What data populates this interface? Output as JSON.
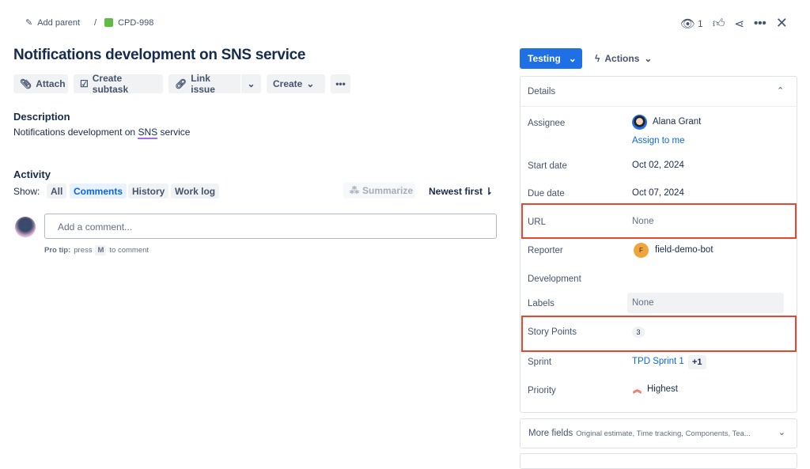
{
  "breadcrumb": {
    "add_parent": "Add parent",
    "separator": "/",
    "issue_key": "CPD-998"
  },
  "header": {
    "watch_count": "1"
  },
  "title": "Notifications development on SNS service",
  "toolbar": {
    "attach": "Attach",
    "create_subtask": "Create subtask",
    "link_issue": "Link issue",
    "create": "Create"
  },
  "description": {
    "heading": "Description",
    "text_before": "Notifications development on ",
    "text_link": "SNS",
    "text_after": " service"
  },
  "activity": {
    "heading": "Activity",
    "show_label": "Show:",
    "filters": [
      "All",
      "Comments",
      "History",
      "Work log"
    ],
    "active_filter": "Comments",
    "summarize": "Summarize",
    "sort": "Newest first",
    "comment_placeholder": "Add a comment...",
    "pro_tip_bold": "Pro tip:",
    "pro_tip_text": "press",
    "pro_tip_key": "M",
    "pro_tip_after": "to comment"
  },
  "status": {
    "label": "Testing",
    "actions": "Actions",
    "accent": "#1f6fe5"
  },
  "details": {
    "heading": "Details",
    "assignee_label": "Assignee",
    "assignee": "Alana Grant",
    "assign_to_me": "Assign to me",
    "start_label": "Start date",
    "start": "Oct 02, 2024",
    "due_label": "Due date",
    "due": "Oct 07, 2024",
    "url_label": "URL",
    "url": "None",
    "reporter_label": "Reporter",
    "reporter_initial": "F",
    "reporter": "field-demo-bot",
    "development_label": "Development",
    "labels_label": "Labels",
    "labels": "None",
    "story_points_label": "Story Points",
    "story_points": "3",
    "sprint_label": "Sprint",
    "sprint": "TPD Sprint 1",
    "sprint_extra": "+1",
    "priority_label": "Priority",
    "priority": "Highest"
  },
  "more_fields": {
    "label": "More fields",
    "summary": "Original estimate, Time tracking, Components, Tea..."
  },
  "highlight_color": "#e8472f"
}
